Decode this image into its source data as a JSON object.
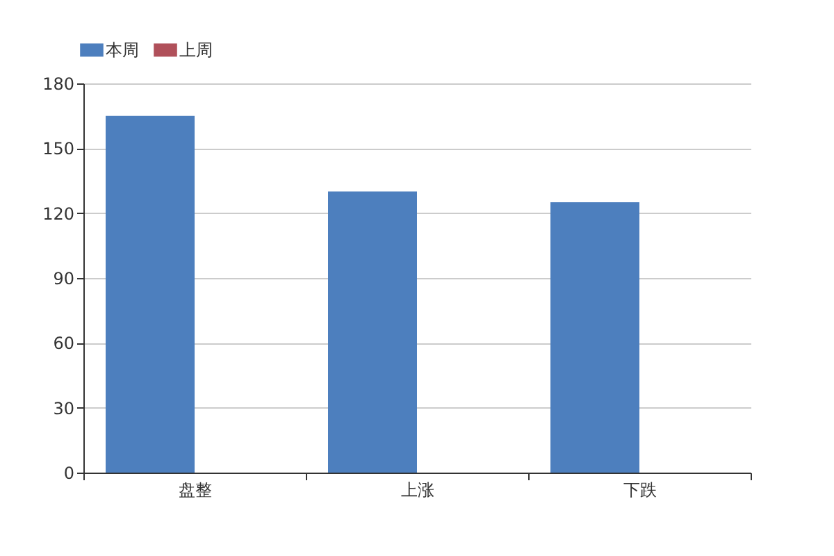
{
  "chart_data": {
    "type": "bar",
    "categories": [
      "盘整",
      "上涨",
      "下跌"
    ],
    "series": [
      {
        "name": "本周",
        "color": "#4d7fbe",
        "values": [
          165,
          130,
          125
        ]
      },
      {
        "name": "上周",
        "color": "#b0505a",
        "values": [
          null,
          null,
          null
        ]
      }
    ],
    "ylim": [
      0,
      180
    ],
    "yticks": [
      0,
      30,
      60,
      90,
      120,
      150,
      180
    ],
    "grid": "y",
    "legend": "top"
  }
}
